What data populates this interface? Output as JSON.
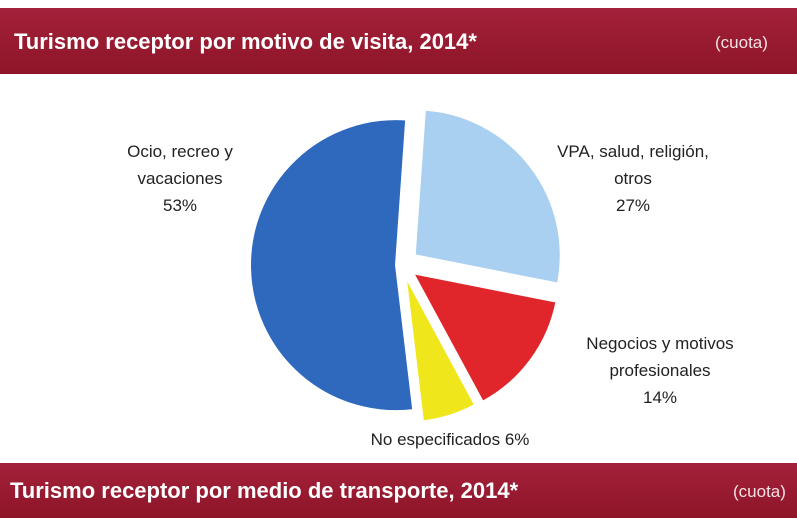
{
  "chart_data": {
    "type": "pie",
    "title": "Turismo receptor por motivo de visita, 2014*",
    "subtitle": "(cuota)",
    "categories": [
      "VPA, salud, religión, otros",
      "Negocios y motivos profesionales",
      "No especificados",
      "Ocio, recreo y vacaciones"
    ],
    "values": [
      27,
      14,
      6,
      53
    ],
    "value_labels": [
      "27%",
      "14%",
      "6%",
      "53%"
    ],
    "colors": [
      "#a9d0f1",
      "#e0262b",
      "#f0e61c",
      "#2f69bd"
    ]
  },
  "next_section": {
    "title": "Turismo receptor por medio de transporte, 2014*",
    "subtitle": "(cuota)"
  }
}
